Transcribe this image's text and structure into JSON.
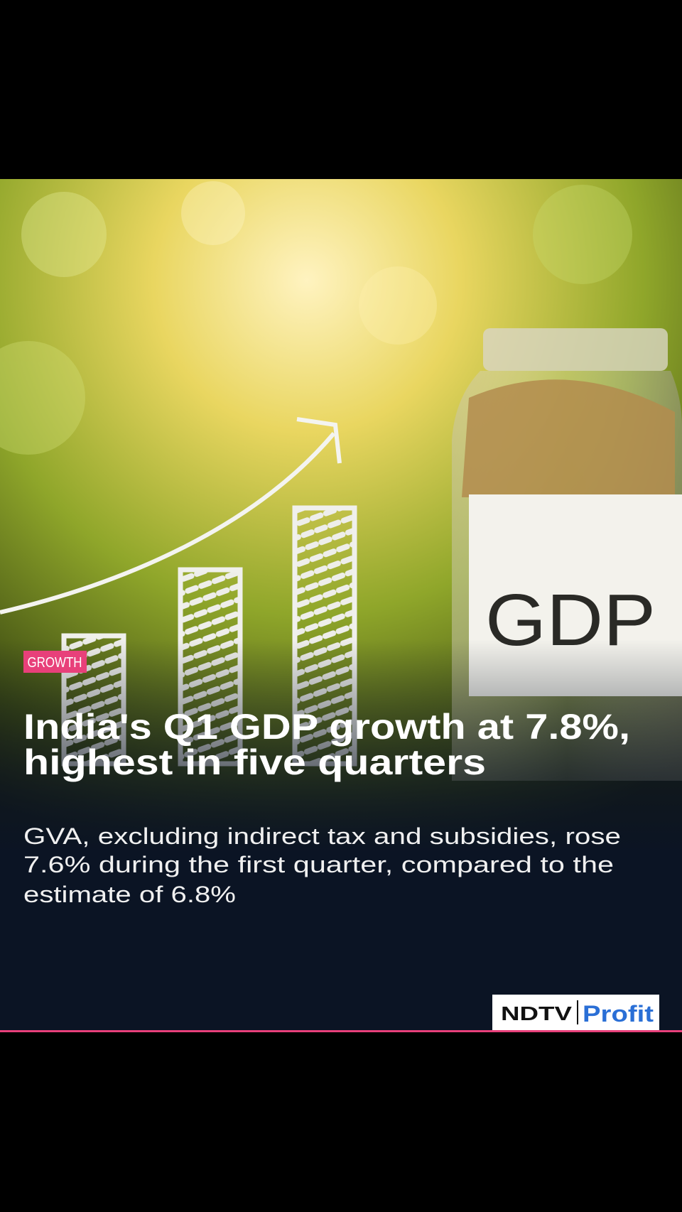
{
  "tag": "GROWTH",
  "headline": [
    "India's Q1 GDP growth at 7.8%,",
    "highest in five quarters"
  ],
  "body": [
    "GVA, excluding indirect tax and subsidies, rose",
    "7.6% during the first quarter, compared to the",
    "estimate of 6.8%"
  ],
  "image": {
    "jar_label": "GDP"
  },
  "logo": {
    "brand": "NDTV",
    "product": "Profit"
  }
}
